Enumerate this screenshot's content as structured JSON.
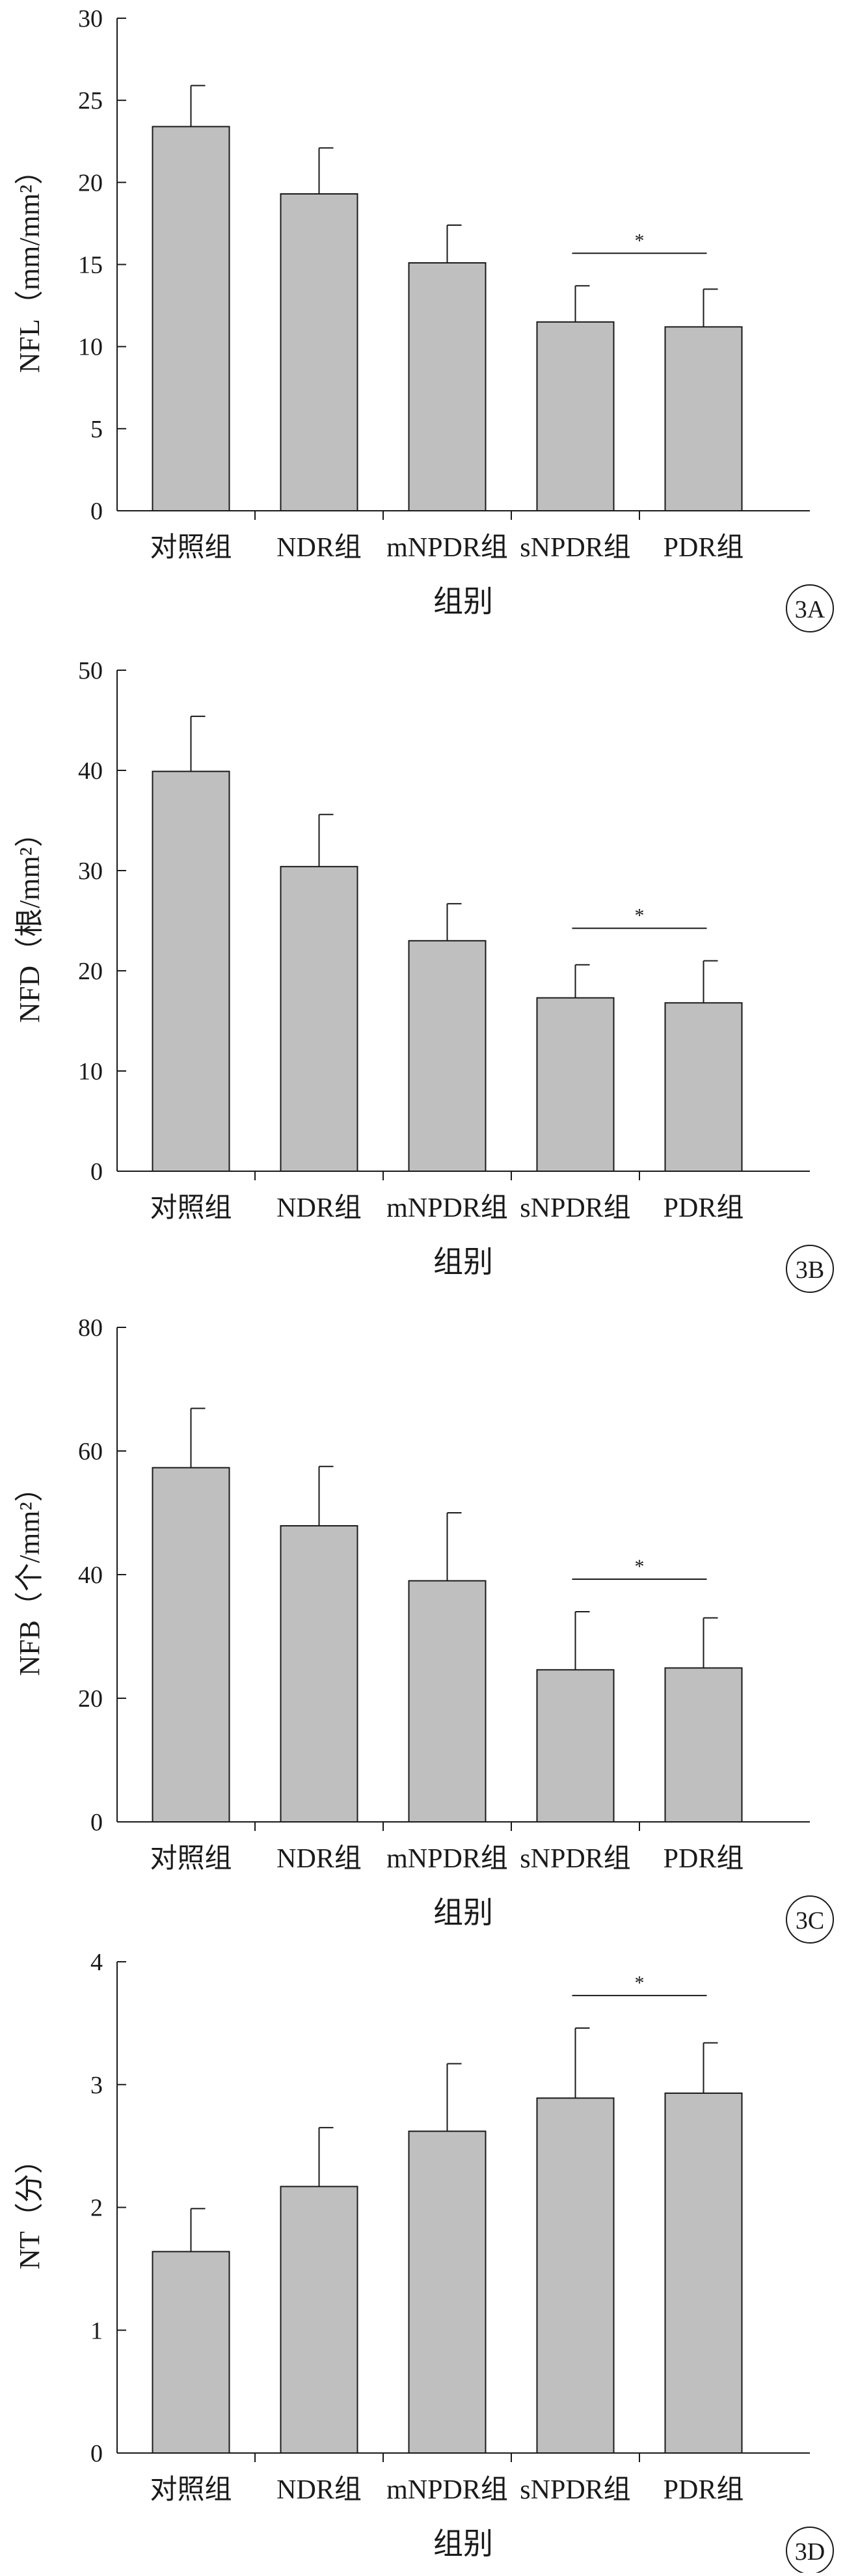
{
  "chart_data": [
    {
      "type": "bar",
      "panel_label": "3A",
      "ylabel": "NFL（mm/mm²）",
      "xlabel": "组别",
      "ylim": [
        0,
        30
      ],
      "yticks": [
        "0",
        "5",
        "10",
        "15",
        "20",
        "25",
        "30"
      ],
      "categories": [
        "对照组",
        "NDR组",
        "mNPDR组",
        "sNPDR组",
        "PDR组"
      ],
      "values": [
        23.4,
        19.3,
        15.1,
        11.5,
        11.2
      ],
      "errors": [
        2.5,
        2.8,
        2.3,
        2.2,
        2.3
      ],
      "significance": {
        "label": "*",
        "between": [
          "sNPDR组",
          "PDR组"
        ]
      },
      "bar_color": "#bfbfbf"
    },
    {
      "type": "bar",
      "panel_label": "3B",
      "ylabel": "NFD（根/mm²）",
      "xlabel": "组别",
      "ylim": [
        0,
        50
      ],
      "yticks": [
        "0",
        "10",
        "20",
        "30",
        "40",
        "50"
      ],
      "categories": [
        "对照组",
        "NDR组",
        "mNPDR组",
        "sNPDR组",
        "PDR组"
      ],
      "values": [
        39.9,
        30.4,
        23.0,
        17.3,
        16.8
      ],
      "errors": [
        5.5,
        5.2,
        3.7,
        3.3,
        4.2
      ],
      "significance": {
        "label": "*",
        "between": [
          "sNPDR组",
          "PDR组"
        ]
      },
      "bar_color": "#bfbfbf"
    },
    {
      "type": "bar",
      "panel_label": "3C",
      "ylabel": "NFB（个/mm²）",
      "xlabel": "组别",
      "ylim": [
        0,
        80
      ],
      "yticks": [
        "0",
        "20",
        "40",
        "60",
        "80"
      ],
      "categories": [
        "对照组",
        "NDR组",
        "mNPDR组",
        "sNPDR组",
        "PDR组"
      ],
      "values": [
        57.3,
        47.9,
        39.0,
        24.6,
        24.9
      ],
      "errors": [
        9.6,
        9.6,
        11.0,
        9.4,
        8.1
      ],
      "significance": {
        "label": "*",
        "between": [
          "sNPDR组",
          "PDR组"
        ]
      },
      "bar_color": "#bfbfbf"
    },
    {
      "type": "bar",
      "panel_label": "3D",
      "ylabel": "NT（分）",
      "xlabel": "组别",
      "ylim": [
        0,
        4
      ],
      "yticks": [
        "0",
        "1",
        "2",
        "3",
        "4"
      ],
      "categories": [
        "对照组",
        "NDR组",
        "mNPDR组",
        "sNPDR组",
        "PDR组"
      ],
      "values": [
        1.64,
        2.17,
        2.62,
        2.89,
        2.93
      ],
      "errors": [
        0.35,
        0.48,
        0.55,
        0.57,
        0.41
      ],
      "significance": {
        "label": "*",
        "between": [
          "sNPDR组",
          "PDR组"
        ]
      },
      "bar_color": "#bfbfbf"
    }
  ]
}
